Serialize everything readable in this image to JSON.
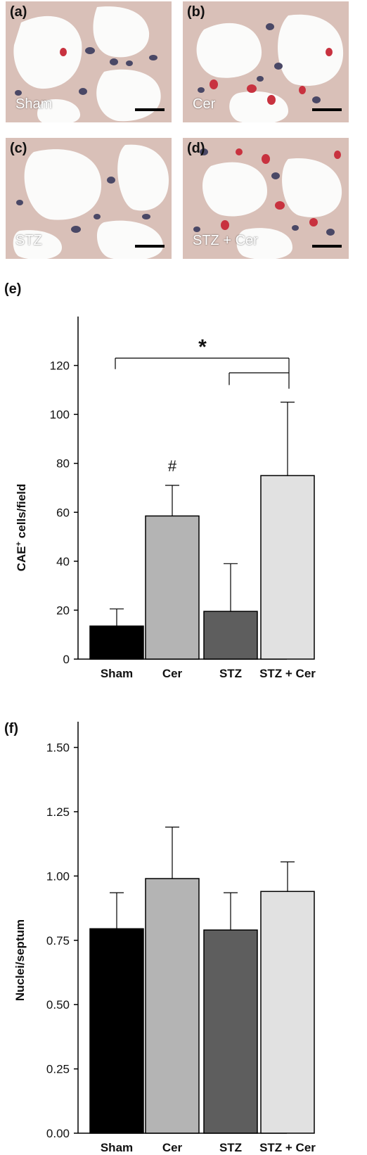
{
  "panels": [
    {
      "id": "a",
      "label": "(a)",
      "caption": "Sham"
    },
    {
      "id": "b",
      "label": "(b)",
      "caption": "Cer"
    },
    {
      "id": "c",
      "label": "(c)",
      "caption": "STZ"
    },
    {
      "id": "d",
      "label": "(d)",
      "caption": "STZ + Cer"
    }
  ],
  "colors": {
    "tissue_bg": "#d9c0b8",
    "lumen": "#fbfbfa",
    "nucleus": "#4a4866",
    "cae_cell": "#c8323f",
    "bar_sham": "#000000",
    "bar_cer": "#b4b4b4",
    "bar_stz": "#5e5e5e",
    "bar_stzcer": "#e1e1e1"
  },
  "chart_data": [
    {
      "type": "bar",
      "panel_label": "(e)",
      "categories": [
        "Sham",
        "Cer",
        "STZ",
        "STZ + Cer"
      ],
      "values": [
        13.5,
        58.5,
        19.5,
        75
      ],
      "errors": [
        7,
        12.5,
        19.5,
        30
      ],
      "ylabel_main": "CAE",
      "ylabel_sup": "+",
      "ylabel_rest": " cells/field",
      "ylim": [
        0,
        140
      ],
      "yticks": [
        0,
        20,
        40,
        60,
        80,
        100,
        120
      ],
      "annotations": {
        "hash": "#",
        "star": "*"
      }
    },
    {
      "type": "bar",
      "panel_label": "(f)",
      "categories": [
        "Sham",
        "Cer",
        "STZ",
        "STZ + Cer"
      ],
      "values": [
        0.795,
        0.99,
        0.79,
        0.94
      ],
      "errors": [
        0.14,
        0.2,
        0.145,
        0.115
      ],
      "ylabel": "Nuclei/septum",
      "ylim": [
        0,
        1.6
      ],
      "yticks": [
        "0.00",
        "0.25",
        "0.50",
        "0.75",
        "1.00",
        "1.25",
        "1.50"
      ]
    }
  ]
}
